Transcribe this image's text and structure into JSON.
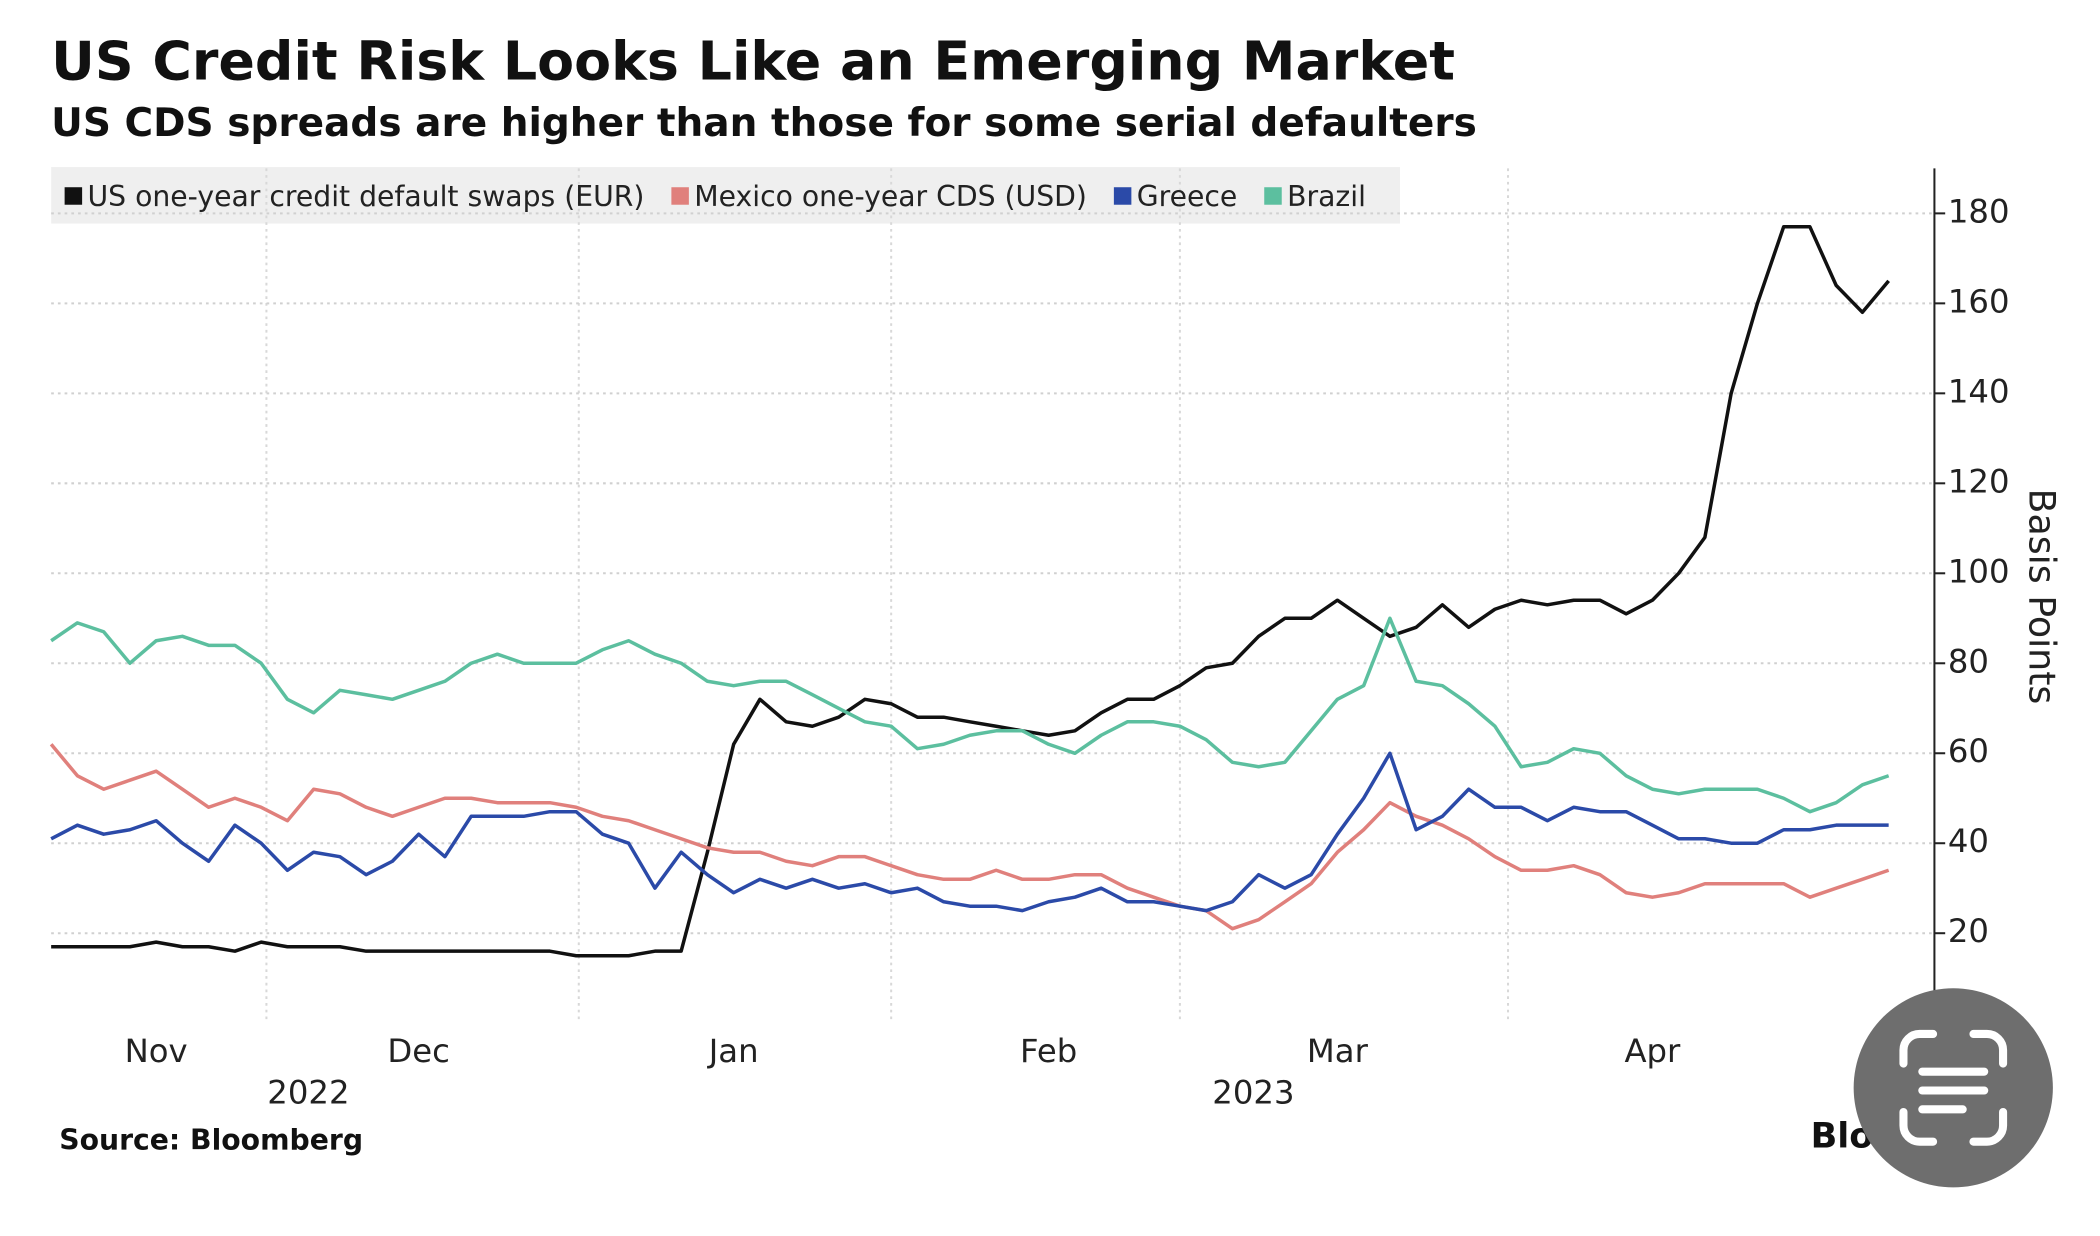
{
  "chart_data": {
    "type": "line",
    "title": "US Credit Risk Looks Like an Emerging Market",
    "subtitle": "US CDS spreads are higher than those for some serial defaulters",
    "y_axis_label": "Basis Points",
    "source": "Source: Bloomberg",
    "credit": "Bloomberg",
    "year_labels": [
      "2022",
      "2023"
    ],
    "categories": [
      null,
      null,
      null,
      null,
      "Nov",
      null,
      null,
      null,
      null,
      null,
      null,
      null,
      null,
      null,
      "Dec",
      null,
      null,
      null,
      null,
      null,
      null,
      null,
      null,
      null,
      null,
      null,
      "Jan",
      null,
      null,
      null,
      null,
      null,
      null,
      null,
      null,
      null,
      null,
      null,
      "Feb",
      null,
      null,
      null,
      null,
      null,
      null,
      null,
      null,
      null,
      null,
      "Mar",
      null,
      null,
      null,
      null,
      null,
      null,
      null,
      null,
      null,
      null,
      null,
      "Apr",
      null,
      null,
      null,
      null,
      null,
      null,
      null,
      null,
      null
    ],
    "series": [
      {
        "name": "US one-year credit default swaps (EUR)",
        "color": "#111111",
        "values": [
          17,
          17,
          17,
          17,
          18,
          17,
          17,
          16,
          18,
          17,
          17,
          17,
          16,
          16,
          16,
          16,
          16,
          16,
          16,
          16,
          15,
          15,
          15,
          16,
          16,
          38,
          62,
          72,
          67,
          66,
          68,
          72,
          71,
          68,
          68,
          67,
          66,
          65,
          64,
          65,
          69,
          72,
          72,
          75,
          79,
          80,
          86,
          90,
          90,
          94,
          90,
          86,
          88,
          93,
          88,
          92,
          94,
          93,
          94,
          94,
          91,
          94,
          100,
          108,
          140,
          160,
          177,
          177,
          164,
          158,
          165
        ]
      },
      {
        "name": "Mexico one-year CDS (USD)",
        "color": "#e0807c",
        "values": [
          62,
          55,
          52,
          54,
          56,
          52,
          48,
          50,
          48,
          45,
          52,
          51,
          48,
          46,
          48,
          50,
          50,
          49,
          49,
          49,
          48,
          46,
          45,
          43,
          41,
          39,
          38,
          38,
          36,
          35,
          37,
          37,
          35,
          33,
          32,
          32,
          34,
          32,
          32,
          33,
          33,
          30,
          28,
          26,
          25,
          21,
          23,
          27,
          31,
          38,
          43,
          49,
          46,
          44,
          41,
          37,
          34,
          34,
          35,
          33,
          29,
          28,
          29,
          31,
          31,
          31,
          31,
          28,
          30,
          32,
          34
        ]
      },
      {
        "name": "Greece",
        "color": "#2b4aa8",
        "values": [
          41,
          44,
          42,
          43,
          45,
          40,
          36,
          44,
          40,
          34,
          38,
          37,
          33,
          36,
          42,
          37,
          46,
          46,
          46,
          47,
          47,
          42,
          40,
          30,
          38,
          33,
          29,
          32,
          30,
          32,
          30,
          31,
          29,
          30,
          27,
          26,
          26,
          25,
          27,
          28,
          30,
          27,
          27,
          26,
          25,
          27,
          33,
          30,
          33,
          42,
          50,
          60,
          43,
          46,
          52,
          48,
          48,
          45,
          48,
          47,
          47,
          44,
          41,
          41,
          40,
          40,
          43,
          43,
          44,
          44,
          44
        ]
      },
      {
        "name": "Brazil",
        "color": "#5cbf9f",
        "values": [
          85,
          89,
          87,
          80,
          85,
          86,
          84,
          84,
          80,
          72,
          69,
          74,
          73,
          72,
          74,
          76,
          80,
          82,
          80,
          80,
          80,
          83,
          85,
          82,
          80,
          76,
          75,
          76,
          76,
          73,
          70,
          67,
          66,
          61,
          62,
          64,
          65,
          65,
          62,
          60,
          64,
          67,
          67,
          66,
          63,
          58,
          57,
          58,
          65,
          72,
          75,
          90,
          76,
          75,
          71,
          66,
          57,
          58,
          61,
          60,
          55,
          52,
          51,
          52,
          52,
          52,
          50,
          47,
          49,
          53,
          55
        ]
      }
    ],
    "ylim": [
      0,
      190
    ],
    "yticks": [
      20,
      40,
      60,
      80,
      100,
      120,
      140,
      160,
      180
    ],
    "grid": true
  }
}
